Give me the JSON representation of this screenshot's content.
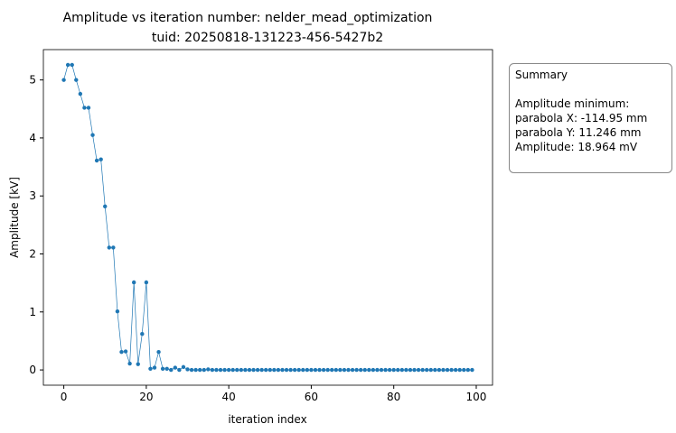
{
  "chart_data": {
    "type": "line",
    "title": "Amplitude vs iteration number: nelder_mead_optimization",
    "subtitle": "tuid: 20250818-131223-456-5427b2",
    "x_label": "iteration index",
    "y_label": "Amplitude [kV]",
    "x": [
      0,
      1,
      2,
      3,
      4,
      5,
      6,
      7,
      8,
      9,
      10,
      11,
      12,
      13,
      14,
      15,
      16,
      17,
      18,
      19,
      20,
      21,
      22,
      23,
      24,
      25,
      26,
      27,
      28,
      29,
      30,
      31,
      32,
      33,
      34,
      35,
      36,
      37,
      38,
      39,
      40,
      41,
      42,
      43,
      44,
      45,
      46,
      47,
      48,
      49,
      50,
      51,
      52,
      53,
      54,
      55,
      56,
      57,
      58,
      59,
      60,
      61,
      62,
      63,
      64,
      65,
      66,
      67,
      68,
      69,
      70,
      71,
      72,
      73,
      74,
      75,
      76,
      77,
      78,
      79,
      80,
      81,
      82,
      83,
      84,
      85,
      86,
      87,
      88,
      89,
      90,
      91,
      92,
      93,
      94,
      95,
      96,
      97,
      98,
      99
    ],
    "series": [
      {
        "color": "#1f77b4",
        "values": [
          5.0,
          5.26,
          5.26,
          5.0,
          4.76,
          4.52,
          4.52,
          4.05,
          3.61,
          3.63,
          2.82,
          2.11,
          2.11,
          1.01,
          0.31,
          0.32,
          0.11,
          1.51,
          0.1,
          0.62,
          1.51,
          0.02,
          0.04,
          0.31,
          0.02,
          0.02,
          0.0,
          0.04,
          0.0,
          0.05,
          0.01,
          0.0,
          0.0,
          0.0,
          0.0,
          0.01,
          0.0,
          0.0,
          0.0,
          0.0,
          0.0,
          0.0,
          0.0,
          0.0,
          0.0,
          0.0,
          0.0,
          0.0,
          0.0,
          0.0,
          0.0,
          0.0,
          0.0,
          0.0,
          0.0,
          0.0,
          0.0,
          0.0,
          0.0,
          0.0,
          0.0,
          0.0,
          0.0,
          0.0,
          0.0,
          0.0,
          0.0,
          0.0,
          0.0,
          0.0,
          0.0,
          0.0,
          0.0,
          0.0,
          0.0,
          0.0,
          0.0,
          0.0,
          0.0,
          0.0,
          0.0,
          0.0,
          0.0,
          0.0,
          0.0,
          0.0,
          0.0,
          0.0,
          0.0,
          0.0,
          0.0,
          0.0,
          0.0,
          0.0,
          0.0,
          0.0,
          0.0,
          0.0,
          0.0,
          0.0
        ]
      }
    ],
    "xlim": [
      -4.95,
      103.95
    ],
    "xticks": [
      0,
      20,
      40,
      60,
      80,
      100
    ],
    "ylim": [
      -0.263,
      5.523
    ],
    "yticks": [
      0,
      1,
      2,
      3,
      4,
      5
    ],
    "summary": {
      "title": "Summary",
      "lines": [
        "Amplitude minimum:",
        "parabola X: -114.95 mm",
        "parabola Y: 11.246 mm",
        "Amplitude: 18.964 mV"
      ]
    }
  }
}
